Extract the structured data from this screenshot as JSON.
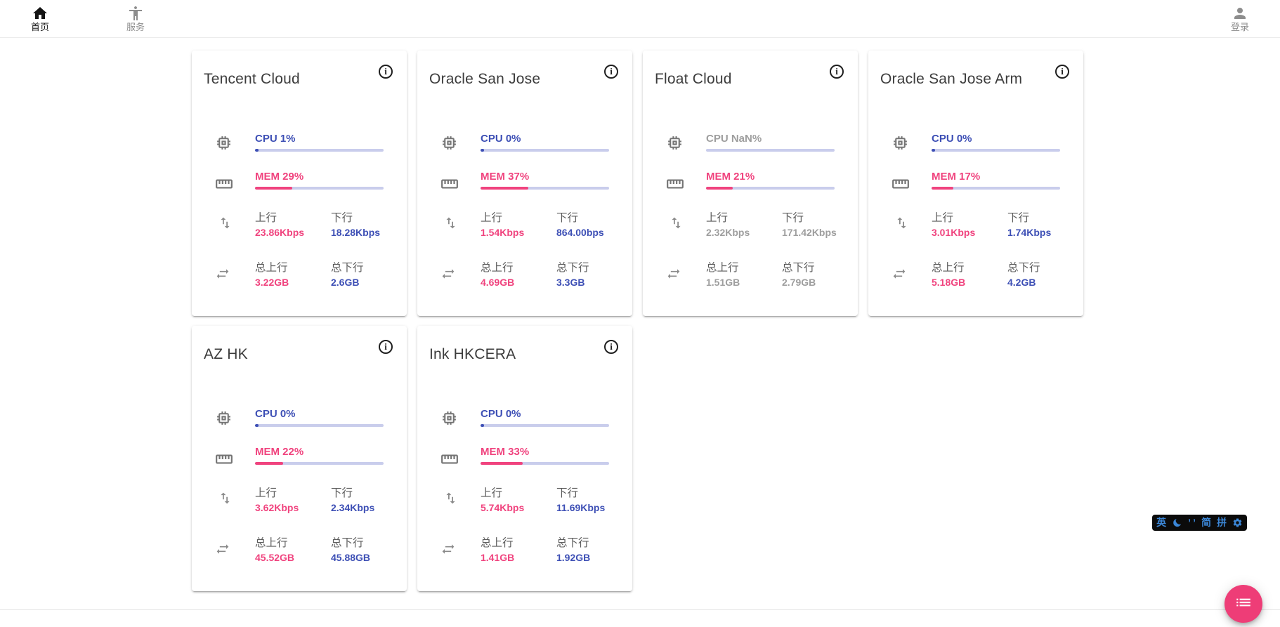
{
  "nav": {
    "home": {
      "label": "首页",
      "icon": "home-icon"
    },
    "services": {
      "label": "服务",
      "icon": "accessibility-icon"
    },
    "login": {
      "label": "登录",
      "icon": "person-icon"
    }
  },
  "labels": {
    "up": "上行",
    "down": "下行",
    "total_up": "总上行",
    "total_down": "总下行"
  },
  "icons": {
    "cpu": "chip-icon",
    "mem": "ruler-icon",
    "net": "up-down-arrows-icon",
    "total": "left-right-arrows-icon",
    "info": "info-icon",
    "fab": "list-icon",
    "ime_moon": "moon-icon",
    "ime_gear": "gear-icon"
  },
  "colors": {
    "accent_blue": "#3d4fb5",
    "accent_pink": "#f0437e",
    "bar_track": "#c9cdec",
    "offline_gray": "#9e9e9e",
    "fab_pink": "#ee3d77",
    "ime_blue": "#3b86d6"
  },
  "servers": [
    {
      "name": "Tencent Cloud",
      "cpu_text": "CPU 1%",
      "cpu_pct": 1,
      "mem_text": "MEM 29%",
      "mem_pct": 29,
      "up": "23.86Kbps",
      "down": "18.28Kbps",
      "total_up": "3.22GB",
      "total_down": "2.6GB",
      "offline": false
    },
    {
      "name": "Oracle San Jose",
      "cpu_text": "CPU 0%",
      "cpu_pct": 0,
      "mem_text": "MEM 37%",
      "mem_pct": 37,
      "up": "1.54Kbps",
      "down": "864.00bps",
      "total_up": "4.69GB",
      "total_down": "3.3GB",
      "offline": false
    },
    {
      "name": "Float Cloud",
      "cpu_text": "CPU NaN%",
      "cpu_pct": null,
      "mem_text": "MEM 21%",
      "mem_pct": 21,
      "up": "2.32Kbps",
      "down": "171.42Kbps",
      "total_up": "1.51GB",
      "total_down": "2.79GB",
      "offline": true
    },
    {
      "name": "Oracle San Jose Arm",
      "cpu_text": "CPU 0%",
      "cpu_pct": 0,
      "mem_text": "MEM 17%",
      "mem_pct": 17,
      "up": "3.01Kbps",
      "down": "1.74Kbps",
      "total_up": "5.18GB",
      "total_down": "4.2GB",
      "offline": false
    },
    {
      "name": "AZ HK",
      "cpu_text": "CPU 0%",
      "cpu_pct": 0,
      "mem_text": "MEM 22%",
      "mem_pct": 22,
      "up": "3.62Kbps",
      "down": "2.34Kbps",
      "total_up": "45.52GB",
      "total_down": "45.88GB",
      "offline": false
    },
    {
      "name": "Ink HKCERA",
      "cpu_text": "CPU 0%",
      "cpu_pct": 0,
      "mem_text": "MEM 33%",
      "mem_pct": 33,
      "up": "5.74Kbps",
      "down": "11.69Kbps",
      "total_up": "1.41GB",
      "total_down": "1.92GB",
      "offline": false
    }
  ],
  "ime": {
    "lang": "英",
    "punct": "’ ’",
    "charset": "简",
    "scheme": "拼"
  }
}
